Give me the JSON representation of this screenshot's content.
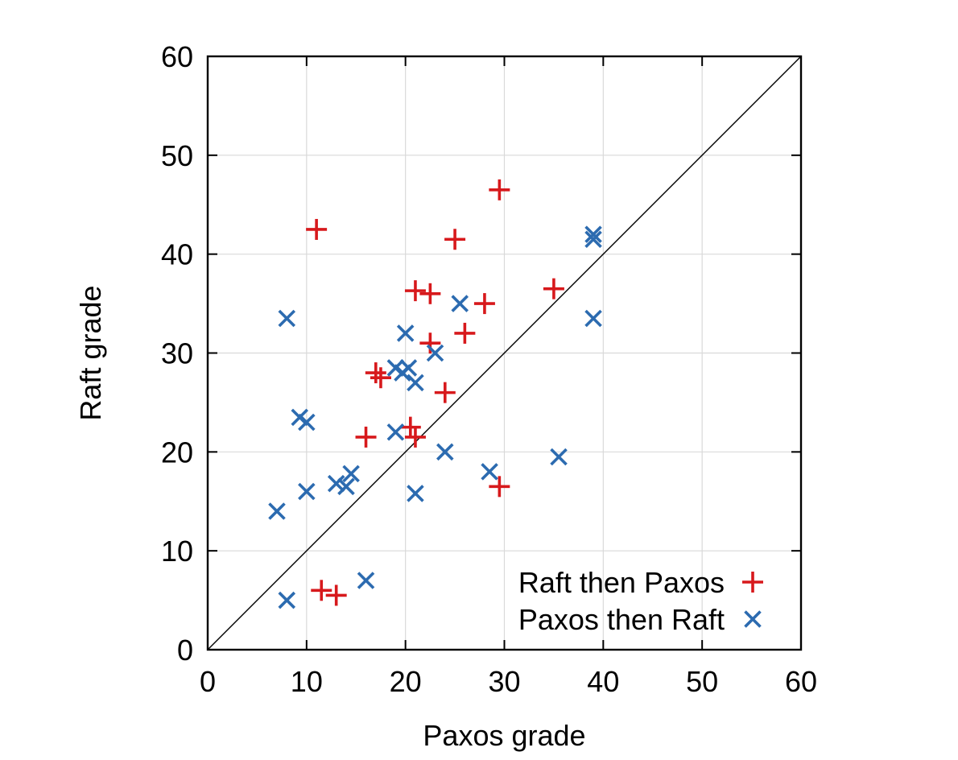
{
  "chart_data": {
    "type": "scatter",
    "xlabel": "Paxos grade",
    "ylabel": "Raft grade",
    "xlim": [
      0,
      60
    ],
    "ylim": [
      0,
      60
    ],
    "xticks": [
      0,
      10,
      20,
      30,
      40,
      50,
      60
    ],
    "yticks": [
      0,
      10,
      20,
      30,
      40,
      50,
      60
    ],
    "grid": true,
    "legend_position": "bottom-right",
    "reference_line": "y = x",
    "series": [
      {
        "name": "Raft then Paxos",
        "marker": "plus",
        "color": "#d7191c",
        "points": [
          [
            11,
            42.5
          ],
          [
            29.5,
            46.5
          ],
          [
            25,
            41.5
          ],
          [
            21,
            36.3
          ],
          [
            22.5,
            36
          ],
          [
            28,
            35
          ],
          [
            35,
            36.5
          ],
          [
            26,
            32
          ],
          [
            22.5,
            31
          ],
          [
            17,
            28
          ],
          [
            17.5,
            27.5
          ],
          [
            24,
            26
          ],
          [
            16,
            21.5
          ],
          [
            20.5,
            22.5
          ],
          [
            21,
            21.5
          ],
          [
            29.5,
            16.5
          ],
          [
            11.5,
            6
          ],
          [
            13,
            5.5
          ]
        ]
      },
      {
        "name": "Paxos then Raft",
        "marker": "cross",
        "color": "#2c6bb0",
        "points": [
          [
            8,
            33.5
          ],
          [
            25.5,
            35
          ],
          [
            20,
            32
          ],
          [
            23,
            30
          ],
          [
            19,
            28.5
          ],
          [
            20.3,
            28.5
          ],
          [
            19.7,
            28
          ],
          [
            21,
            27
          ],
          [
            9.3,
            23.5
          ],
          [
            10,
            23
          ],
          [
            19,
            22
          ],
          [
            24,
            20
          ],
          [
            35.5,
            19.5
          ],
          [
            28.5,
            18
          ],
          [
            14.5,
            17.8
          ],
          [
            13,
            16.8
          ],
          [
            14,
            16.5
          ],
          [
            10,
            16
          ],
          [
            21,
            15.8
          ],
          [
            7,
            14
          ],
          [
            16,
            7
          ],
          [
            8,
            5
          ],
          [
            39,
            42
          ],
          [
            39,
            41.5
          ],
          [
            39,
            33.5
          ]
        ]
      }
    ]
  }
}
